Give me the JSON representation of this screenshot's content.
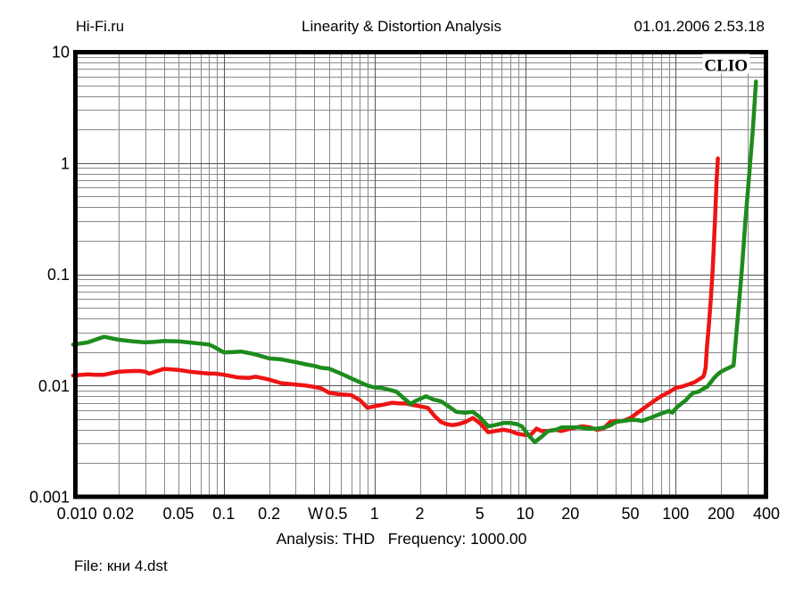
{
  "header": {
    "watermark": "Hi-Fi.ru",
    "title": "Linearity & Distortion Analysis",
    "timestamp": "01.01.2006 2.53.18"
  },
  "footer": {
    "analysis_label": "Analysis: THD",
    "frequency_label": "Frequency: 1000.00",
    "separator": "   ",
    "file_label": "File: кни 4.dst"
  },
  "plot": {
    "brand": "CLIO",
    "border_color": "#000000",
    "grid_minor_color": "#8a8a8a",
    "grid_major_color": "#555555",
    "background": "#ffffff"
  },
  "chart_data": {
    "type": "line",
    "title": "Linearity & Distortion Analysis",
    "xlabel_unit": "W",
    "ylabel": "",
    "x_axis": {
      "scale": "log",
      "min": 0.01,
      "max": 400,
      "ticks": [
        {
          "v": 0.01,
          "label": "0.010",
          "label_at": 0.0106
        },
        {
          "v": 0.02,
          "label": "0.02"
        },
        {
          "v": 0.05,
          "label": "0.05"
        },
        {
          "v": 0.1,
          "label": "0.1"
        },
        {
          "v": 0.2,
          "label": "0.2"
        },
        {
          "v": 0.406,
          "label": "W"
        },
        {
          "v": 0.5,
          "label": "0.5",
          "label_at": 0.558
        },
        {
          "v": 1,
          "label": "1"
        },
        {
          "v": 2,
          "label": "2"
        },
        {
          "v": 5,
          "label": "5"
        },
        {
          "v": 10,
          "label": "10"
        },
        {
          "v": 20,
          "label": "20"
        },
        {
          "v": 50,
          "label": "50"
        },
        {
          "v": 100,
          "label": "100"
        },
        {
          "v": 200,
          "label": "200"
        },
        {
          "v": 400,
          "label": "400"
        }
      ]
    },
    "y_axis": {
      "scale": "log",
      "min": 0.001,
      "max": 10,
      "ticks": [
        {
          "v": 10,
          "label": "10"
        },
        {
          "v": 1,
          "label": "1"
        },
        {
          "v": 0.1,
          "label": "0.1"
        },
        {
          "v": 0.01,
          "label": "0.01"
        },
        {
          "v": 0.001,
          "label": "0.001"
        }
      ]
    },
    "grid": "log-minor-and-major",
    "legend": "none",
    "series": [
      {
        "name": "red-curve",
        "color": "#ee1414",
        "points": [
          [
            0.01,
            0.0123
          ],
          [
            0.0125,
            0.0126
          ],
          [
            0.014,
            0.0125
          ],
          [
            0.016,
            0.0125
          ],
          [
            0.02,
            0.0133
          ],
          [
            0.025,
            0.0135
          ],
          [
            0.028,
            0.0135
          ],
          [
            0.03,
            0.0133
          ],
          [
            0.032,
            0.0128
          ],
          [
            0.04,
            0.0141
          ],
          [
            0.05,
            0.0138
          ],
          [
            0.06,
            0.0133
          ],
          [
            0.07,
            0.013
          ],
          [
            0.08,
            0.0128
          ],
          [
            0.0875,
            0.0128
          ],
          [
            0.1,
            0.0125
          ],
          [
            0.125,
            0.0118
          ],
          [
            0.147,
            0.0117
          ],
          [
            0.163,
            0.012
          ],
          [
            0.2,
            0.0113
          ],
          [
            0.24,
            0.0105
          ],
          [
            0.3,
            0.0102
          ],
          [
            0.35,
            0.01
          ],
          [
            0.4,
            0.0097
          ],
          [
            0.445,
            0.0094
          ],
          [
            0.5,
            0.0086
          ],
          [
            0.6,
            0.0083
          ],
          [
            0.7,
            0.0082
          ],
          [
            0.8,
            0.0074
          ],
          [
            0.9,
            0.0063
          ],
          [
            1.0,
            0.0065
          ],
          [
            1.13,
            0.0067
          ],
          [
            1.32,
            0.007
          ],
          [
            1.47,
            0.0069
          ],
          [
            1.62,
            0.0069
          ],
          [
            1.78,
            0.0067
          ],
          [
            2.0,
            0.0065
          ],
          [
            2.26,
            0.0063
          ],
          [
            2.51,
            0.0053
          ],
          [
            2.77,
            0.0047
          ],
          [
            3.0,
            0.0045
          ],
          [
            3.3,
            0.0044
          ],
          [
            3.63,
            0.0045
          ],
          [
            4.0,
            0.0047
          ],
          [
            4.5,
            0.0051
          ],
          [
            5.0,
            0.0046
          ],
          [
            5.7,
            0.0038
          ],
          [
            6.3,
            0.0039
          ],
          [
            7.2,
            0.004
          ],
          [
            8.0,
            0.0039
          ],
          [
            8.8,
            0.0037
          ],
          [
            9.8,
            0.0036
          ],
          [
            10.9,
            0.0036
          ],
          [
            11.9,
            0.0041
          ],
          [
            12.8,
            0.0039
          ],
          [
            14.2,
            0.0039
          ],
          [
            16,
            0.004
          ],
          [
            17.4,
            0.0039
          ],
          [
            20,
            0.0041
          ],
          [
            24,
            0.0043
          ],
          [
            27,
            0.0042
          ],
          [
            30,
            0.004
          ],
          [
            33,
            0.0041
          ],
          [
            36.7,
            0.0047
          ],
          [
            40,
            0.0048
          ],
          [
            44.7,
            0.0048
          ],
          [
            50,
            0.0051
          ],
          [
            60,
            0.0061
          ],
          [
            70,
            0.0071
          ],
          [
            80,
            0.008
          ],
          [
            90,
            0.0087
          ],
          [
            100,
            0.0095
          ],
          [
            111,
            0.0098
          ],
          [
            121,
            0.0102
          ],
          [
            133,
            0.0107
          ],
          [
            142,
            0.0113
          ],
          [
            152,
            0.012
          ],
          [
            155,
            0.0128
          ],
          [
            158,
            0.0145
          ],
          [
            161,
            0.022
          ],
          [
            166,
            0.035
          ],
          [
            171,
            0.06
          ],
          [
            176,
            0.11
          ],
          [
            182,
            0.3
          ],
          [
            187,
            0.7
          ],
          [
            190.5,
            1.1
          ]
        ]
      },
      {
        "name": "green-curve",
        "color": "#1d8c1d",
        "points": [
          [
            0.01,
            0.0233
          ],
          [
            0.0125,
            0.0244
          ],
          [
            0.016,
            0.0274
          ],
          [
            0.02,
            0.0258
          ],
          [
            0.025,
            0.0249
          ],
          [
            0.03,
            0.0244
          ],
          [
            0.035,
            0.0247
          ],
          [
            0.04,
            0.0251
          ],
          [
            0.05,
            0.0249
          ],
          [
            0.06,
            0.0243
          ],
          [
            0.07,
            0.0238
          ],
          [
            0.08,
            0.0233
          ],
          [
            0.0875,
            0.022
          ],
          [
            0.1,
            0.0198
          ],
          [
            0.115,
            0.02
          ],
          [
            0.13,
            0.0202
          ],
          [
            0.15,
            0.0195
          ],
          [
            0.165,
            0.0189
          ],
          [
            0.2,
            0.0175
          ],
          [
            0.24,
            0.0172
          ],
          [
            0.3,
            0.0162
          ],
          [
            0.35,
            0.0155
          ],
          [
            0.4,
            0.015
          ],
          [
            0.445,
            0.0144
          ],
          [
            0.5,
            0.0142
          ],
          [
            0.6,
            0.0128
          ],
          [
            0.7,
            0.0116
          ],
          [
            0.8,
            0.0107
          ],
          [
            0.9,
            0.01
          ],
          [
            1.0,
            0.0096
          ],
          [
            1.12,
            0.0095
          ],
          [
            1.28,
            0.0091
          ],
          [
            1.4,
            0.0088
          ],
          [
            1.53,
            0.0079
          ],
          [
            1.74,
            0.0068
          ],
          [
            1.85,
            0.0072
          ],
          [
            2.2,
            0.008
          ],
          [
            2.45,
            0.0075
          ],
          [
            2.77,
            0.0072
          ],
          [
            3.0,
            0.0067
          ],
          [
            3.5,
            0.0058
          ],
          [
            4.0,
            0.0057
          ],
          [
            4.5,
            0.0058
          ],
          [
            5.0,
            0.0052
          ],
          [
            5.7,
            0.0043
          ],
          [
            6.3,
            0.0044
          ],
          [
            7.2,
            0.0046
          ],
          [
            8.0,
            0.0046
          ],
          [
            8.8,
            0.0045
          ],
          [
            9.5,
            0.0043
          ],
          [
            10.5,
            0.0036
          ],
          [
            11.6,
            0.0031
          ],
          [
            13.0,
            0.0035
          ],
          [
            14.2,
            0.0039
          ],
          [
            16.0,
            0.004
          ],
          [
            17.5,
            0.0042
          ],
          [
            20,
            0.0042
          ],
          [
            23,
            0.0042
          ],
          [
            26,
            0.0041
          ],
          [
            30,
            0.0041
          ],
          [
            34,
            0.0042
          ],
          [
            37,
            0.0044
          ],
          [
            40,
            0.0047
          ],
          [
            44.5,
            0.0048
          ],
          [
            50,
            0.0049
          ],
          [
            55,
            0.0049
          ],
          [
            60,
            0.0048
          ],
          [
            70,
            0.0052
          ],
          [
            80,
            0.0056
          ],
          [
            90,
            0.0059
          ],
          [
            95,
            0.0057
          ],
          [
            100,
            0.0062
          ],
          [
            105,
            0.0066
          ],
          [
            111,
            0.007
          ],
          [
            117,
            0.0074
          ],
          [
            122,
            0.0079
          ],
          [
            127,
            0.0083
          ],
          [
            131,
            0.0086
          ],
          [
            137,
            0.0087
          ],
          [
            144,
            0.0089
          ],
          [
            151,
            0.0093
          ],
          [
            161,
            0.0097
          ],
          [
            170,
            0.0106
          ],
          [
            180,
            0.0117
          ],
          [
            190,
            0.0126
          ],
          [
            200,
            0.0133
          ],
          [
            215,
            0.014
          ],
          [
            230,
            0.0146
          ],
          [
            242,
            0.0151
          ],
          [
            252,
            0.028
          ],
          [
            262,
            0.052
          ],
          [
            275,
            0.11
          ],
          [
            290,
            0.3
          ],
          [
            310,
            0.9
          ],
          [
            325,
            2.0
          ],
          [
            341,
            5.4
          ]
        ]
      }
    ]
  }
}
